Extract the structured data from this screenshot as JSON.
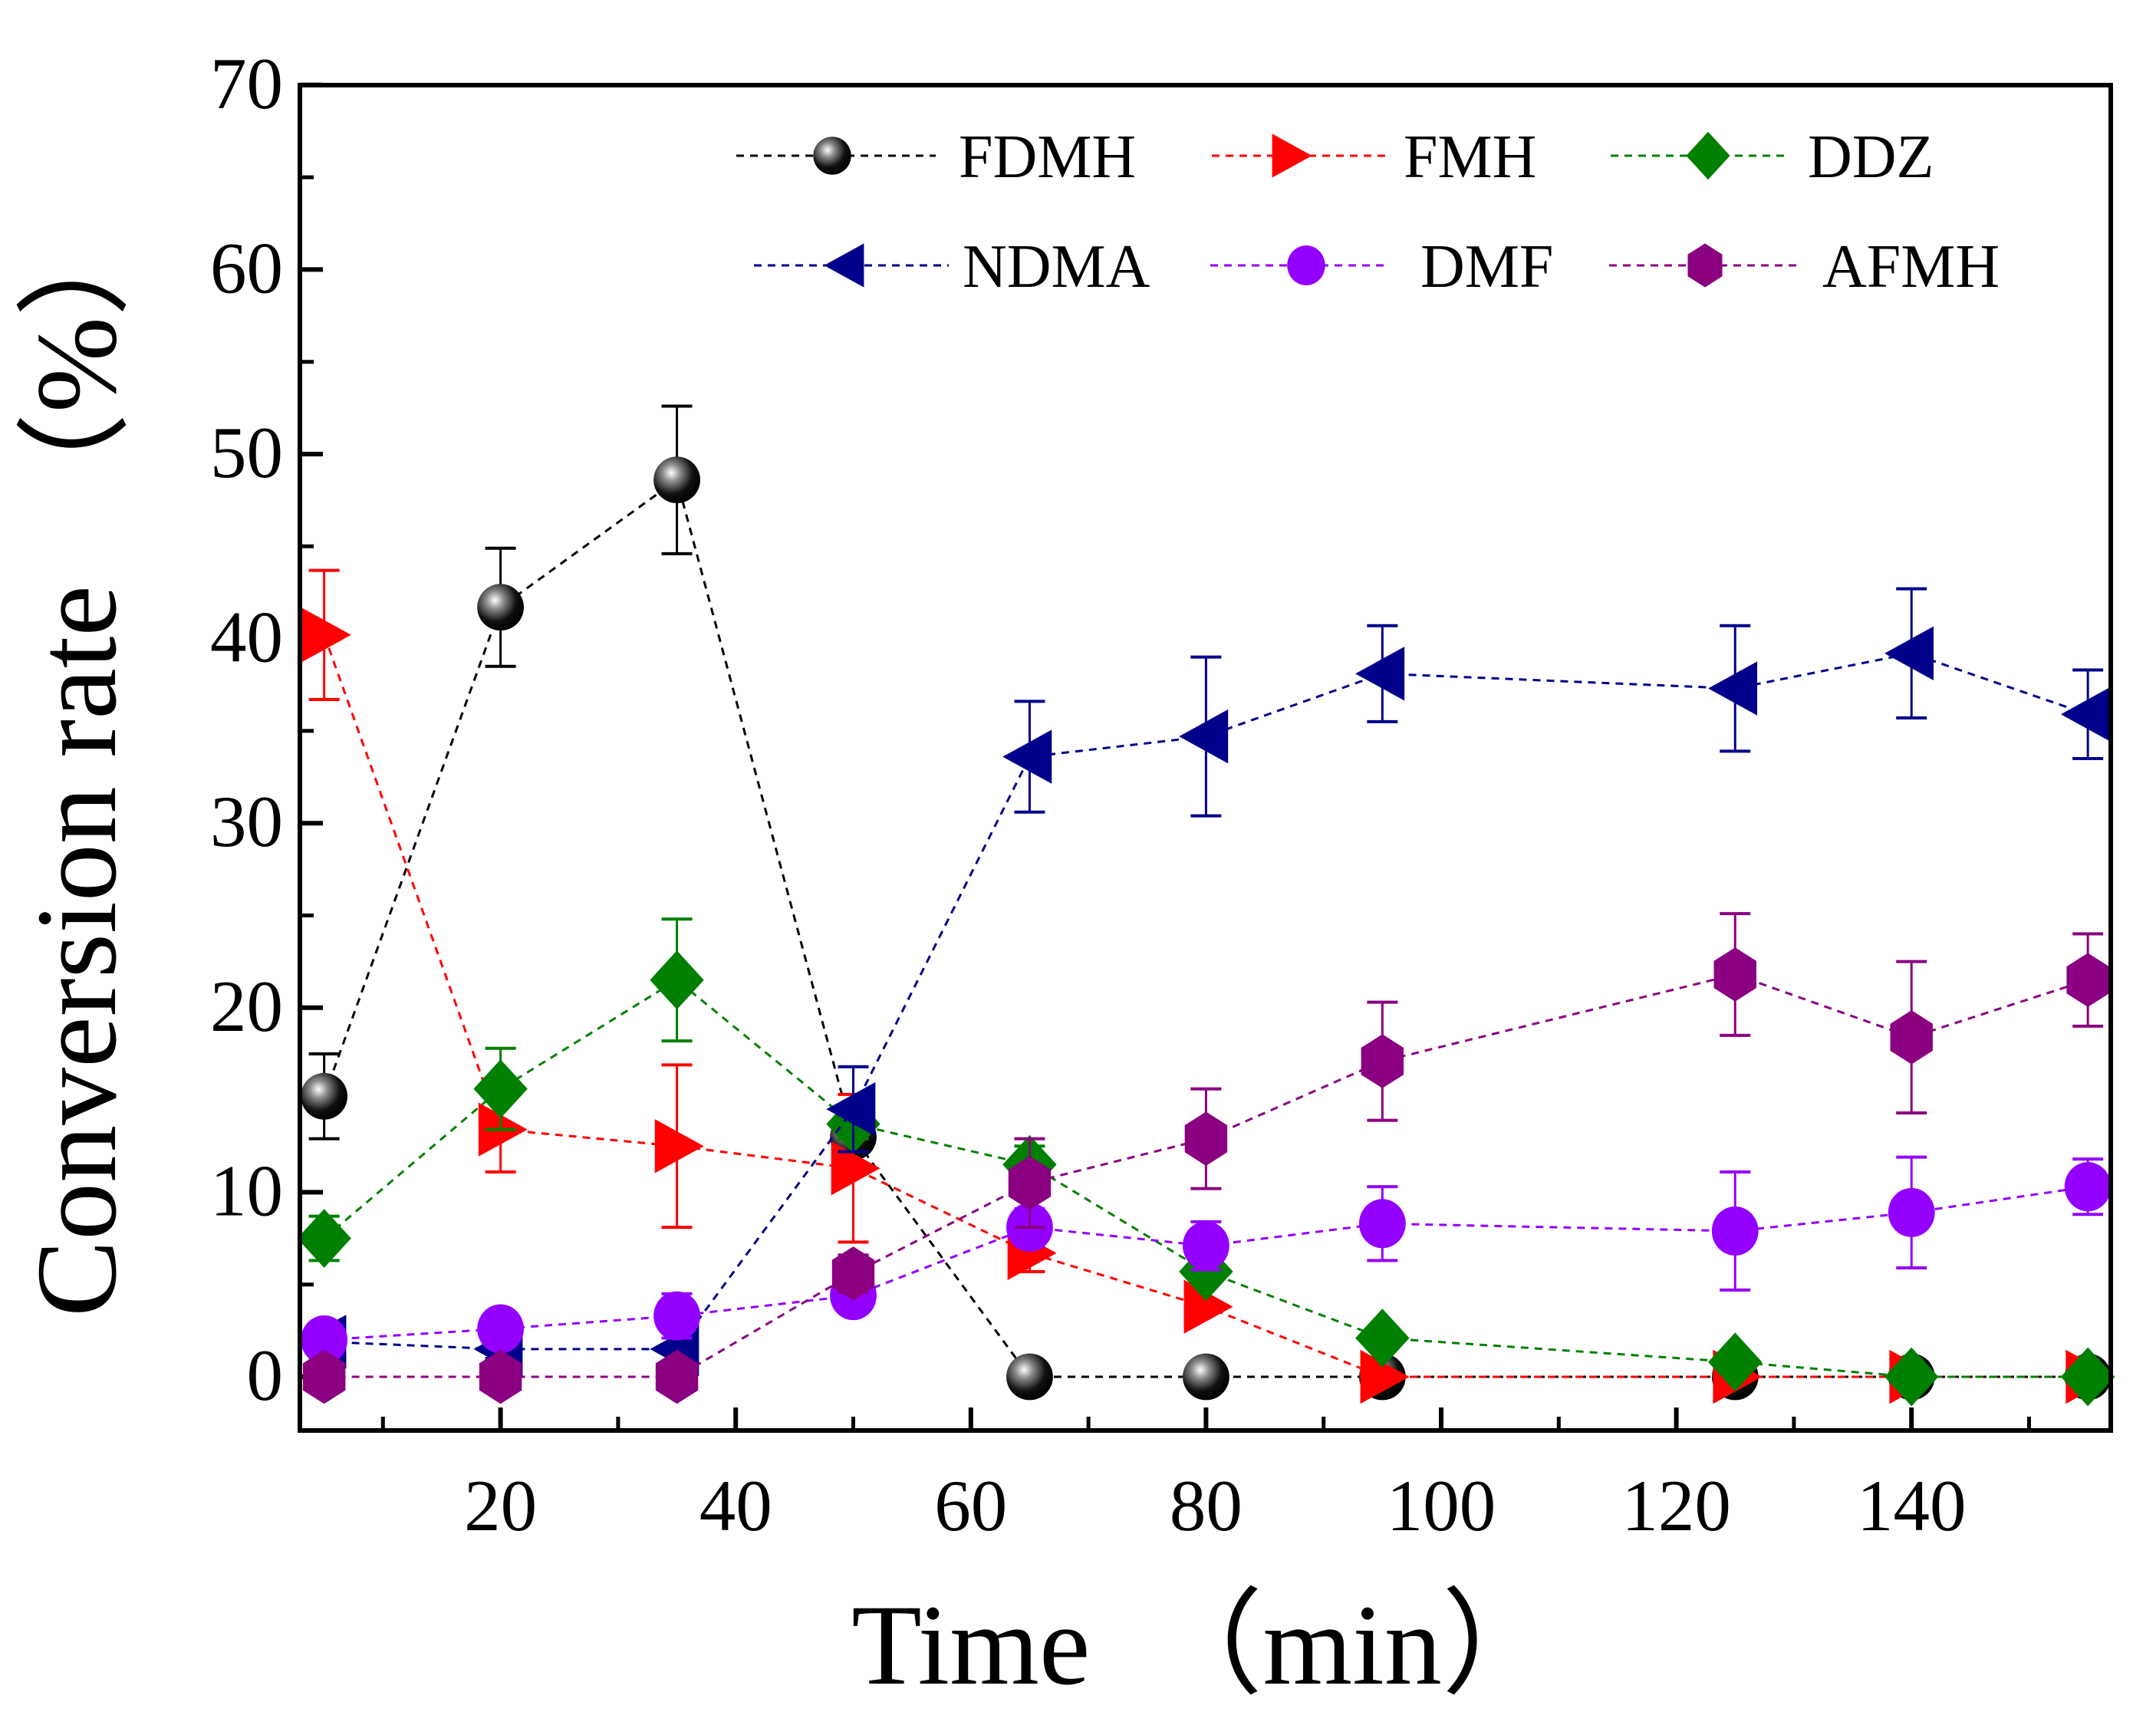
{
  "chart_data": {
    "type": "line",
    "title": "",
    "xlabel": "Time　（min）",
    "ylabel": "Conversion rate　（%）",
    "xlim": [
      2.9,
      157
    ],
    "ylim": [
      -3,
      70
    ],
    "x_ticks": [
      20,
      40,
      60,
      80,
      100,
      120,
      140
    ],
    "y_ticks": [
      0,
      10,
      20,
      30,
      40,
      50,
      60,
      70
    ],
    "grid": false,
    "legend_position": "top-right",
    "x": [
      5,
      20,
      35,
      50,
      65,
      80,
      95,
      125,
      140,
      155
    ],
    "series": [
      {
        "name": "FDMH",
        "color": "#000000",
        "marker": "sphere",
        "values": [
          15.2,
          41.7,
          48.6,
          13.0,
          0,
          0,
          0,
          0,
          0,
          0
        ],
        "errors": [
          2.3,
          3.2,
          4.0,
          0.8,
          0,
          0,
          0,
          0,
          0,
          0
        ]
      },
      {
        "name": "FMH",
        "color": "#ff0000",
        "marker": "triangle-right",
        "values": [
          40.2,
          13.4,
          12.5,
          11.3,
          6.7,
          3.8,
          0,
          0,
          0,
          0
        ],
        "errors": [
          3.5,
          2.3,
          4.4,
          4.0,
          1.0,
          0,
          0,
          0,
          0,
          0
        ]
      },
      {
        "name": "DDZ",
        "color": "#008000",
        "marker": "diamond",
        "values": [
          7.5,
          15.6,
          21.5,
          13.7,
          11.5,
          5.7,
          2.1,
          0.8,
          0,
          0
        ],
        "errors": [
          1.2,
          2.2,
          3.3,
          0.8,
          1.0,
          0,
          0,
          0,
          0,
          0
        ]
      },
      {
        "name": "NDMA",
        "color": "#00008b",
        "marker": "triangle-left",
        "values": [
          1.9,
          1.5,
          1.5,
          14.5,
          33.6,
          34.7,
          38.1,
          37.3,
          39.2,
          35.9
        ],
        "errors": [
          1.0,
          0.5,
          1.0,
          2.3,
          3.0,
          4.3,
          2.6,
          3.4,
          3.5,
          2.4
        ]
      },
      {
        "name": "DMF",
        "color": "#9400ff",
        "marker": "circle",
        "values": [
          2.0,
          2.6,
          3.3,
          4.4,
          8.1,
          7.1,
          8.3,
          7.9,
          8.9,
          10.3
        ],
        "errors": [
          0.5,
          0.3,
          1.2,
          0.5,
          1.0,
          1.3,
          2.0,
          3.2,
          3.0,
          1.5
        ]
      },
      {
        "name": "AFMH",
        "color": "#8b0080",
        "marker": "hexagon",
        "values": [
          0,
          0,
          0,
          5.6,
          10.5,
          12.9,
          17.1,
          21.8,
          18.4,
          21.5
        ],
        "errors": [
          0,
          0,
          0,
          1.0,
          2.4,
          2.7,
          3.2,
          3.3,
          4.1,
          2.5
        ]
      }
    ]
  }
}
